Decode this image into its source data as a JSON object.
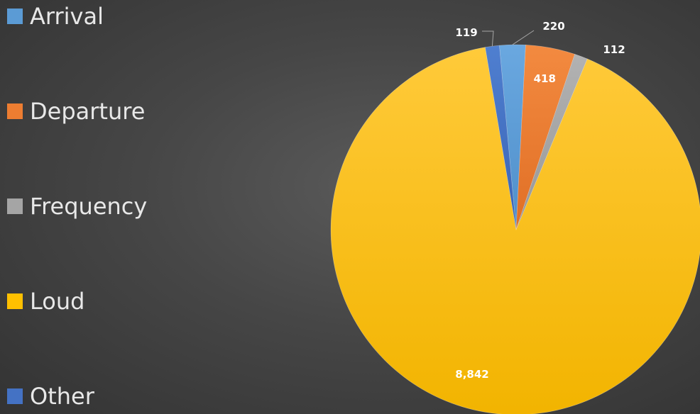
{
  "chart_data": {
    "type": "pie",
    "title": "",
    "start_angle_deg": -5.2,
    "direction": "clockwise",
    "legend_position": "left",
    "slices": [
      {
        "label": "Arrival",
        "value": 220,
        "value_label": "220",
        "color": "#5b9bd5",
        "legend_color": "#5b9bd5"
      },
      {
        "label": "Departure",
        "value": 418,
        "value_label": "418",
        "color": "#ed7d31",
        "legend_color": "#ed7d31"
      },
      {
        "label": "Frequency",
        "value": 112,
        "value_label": "112",
        "color": "#a5a5a5",
        "legend_color": "#a5a5a5"
      },
      {
        "label": "Loud",
        "value": 8842,
        "value_label": "8,842",
        "color": "#ffc000",
        "legend_color": "#ffc000"
      },
      {
        "label": "Other",
        "value": 119,
        "value_label": "119",
        "color": "#4472c4",
        "legend_color": "#4472c4"
      }
    ]
  }
}
